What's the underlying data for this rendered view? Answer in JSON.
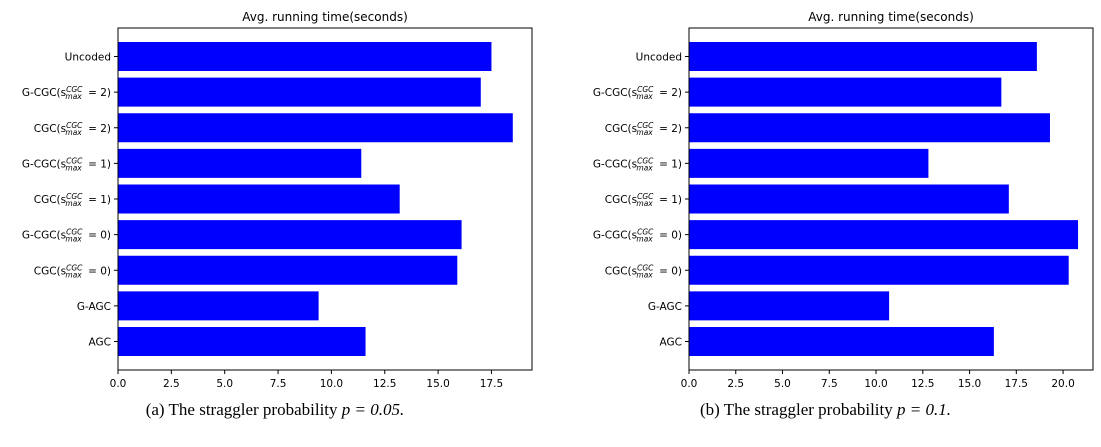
{
  "chart_data": [
    {
      "type": "bar",
      "orientation": "horizontal",
      "title": "Avg. running time(seconds)",
      "caption_prefix": "(a) The straggler probability ",
      "caption_math": "p = 0.05.",
      "categories": [
        {
          "base": "Uncoded",
          "sub": "",
          "sup": "",
          "suffix": ""
        },
        {
          "base": "G-CGC(",
          "sub": "max",
          "sup": "CGC",
          "suffix": " = 2)"
        },
        {
          "base": "CGC(",
          "sub": "max",
          "sup": "CGC",
          "suffix": " = 2)"
        },
        {
          "base": "G-CGC(",
          "sub": "max",
          "sup": "CGC",
          "suffix": " = 1)"
        },
        {
          "base": "CGC(",
          "sub": "max",
          "sup": "CGC",
          "suffix": " = 1)"
        },
        {
          "base": "G-CGC(",
          "sub": "max",
          "sup": "CGC",
          "suffix": " = 0)"
        },
        {
          "base": "CGC(",
          "sub": "max",
          "sup": "CGC",
          "suffix": " = 0)"
        },
        {
          "base": "G-AGC",
          "sub": "",
          "sup": "",
          "suffix": ""
        },
        {
          "base": "AGC",
          "sub": "",
          "sup": "",
          "suffix": ""
        }
      ],
      "values": [
        17.5,
        17.0,
        18.5,
        11.4,
        13.2,
        16.1,
        15.9,
        9.4,
        11.6
      ],
      "xlim": [
        0,
        19.4
      ],
      "xticks": [
        "0.0",
        "2.5",
        "5.0",
        "7.5",
        "10.0",
        "12.5",
        "15.0",
        "17.5"
      ],
      "bar_color": "#0000ff",
      "grid": false
    },
    {
      "type": "bar",
      "orientation": "horizontal",
      "title": "Avg. running time(seconds)",
      "caption_prefix": "(b) The straggler probability ",
      "caption_math": "p = 0.1.",
      "categories": [
        {
          "base": "Uncoded",
          "sub": "",
          "sup": "",
          "suffix": ""
        },
        {
          "base": "G-CGC(",
          "sub": "max",
          "sup": "CGC",
          "suffix": " = 2)"
        },
        {
          "base": "CGC(",
          "sub": "max",
          "sup": "CGC",
          "suffix": " = 2)"
        },
        {
          "base": "G-CGC(",
          "sub": "max",
          "sup": "CGC",
          "suffix": " = 1)"
        },
        {
          "base": "CGC(",
          "sub": "max",
          "sup": "CGC",
          "suffix": " = 1)"
        },
        {
          "base": "G-CGC(",
          "sub": "max",
          "sup": "CGC",
          "suffix": " = 0)"
        },
        {
          "base": "CGC(",
          "sub": "max",
          "sup": "CGC",
          "suffix": " = 0)"
        },
        {
          "base": "G-AGC",
          "sub": "",
          "sup": "",
          "suffix": ""
        },
        {
          "base": "AGC",
          "sub": "",
          "sup": "",
          "suffix": ""
        }
      ],
      "values": [
        18.6,
        16.7,
        19.3,
        12.8,
        17.1,
        20.8,
        20.3,
        10.7,
        16.3
      ],
      "xlim": [
        0,
        21.6
      ],
      "xticks": [
        "0.0",
        "2.5",
        "5.0",
        "7.5",
        "10.0",
        "12.5",
        "15.0",
        "17.5",
        "20.0"
      ],
      "bar_color": "#0000ff",
      "grid": false
    }
  ]
}
